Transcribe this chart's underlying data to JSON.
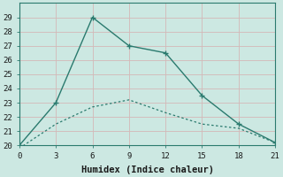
{
  "line1_x": [
    0,
    3,
    6,
    9,
    12,
    15,
    18,
    21
  ],
  "line1_y": [
    20,
    23,
    29,
    27,
    26.5,
    23.5,
    21.5,
    20.2
  ],
  "line2_x": [
    0,
    3,
    6,
    9,
    12,
    15,
    18,
    21
  ],
  "line2_y": [
    19.8,
    21.5,
    22.7,
    23.2,
    22.3,
    21.5,
    21.2,
    20.2
  ],
  "line_color": "#2a7a6e",
  "bg_color": "#cce8e2",
  "grid_color": "#b8d8d2",
  "xlabel": "Humidex (Indice chaleur)",
  "xlim": [
    0,
    21
  ],
  "ylim": [
    20,
    30
  ],
  "xticks": [
    0,
    3,
    6,
    9,
    12,
    15,
    18,
    21
  ],
  "yticks": [
    20,
    21,
    22,
    23,
    24,
    25,
    26,
    27,
    28,
    29
  ],
  "font_family": "monospace"
}
